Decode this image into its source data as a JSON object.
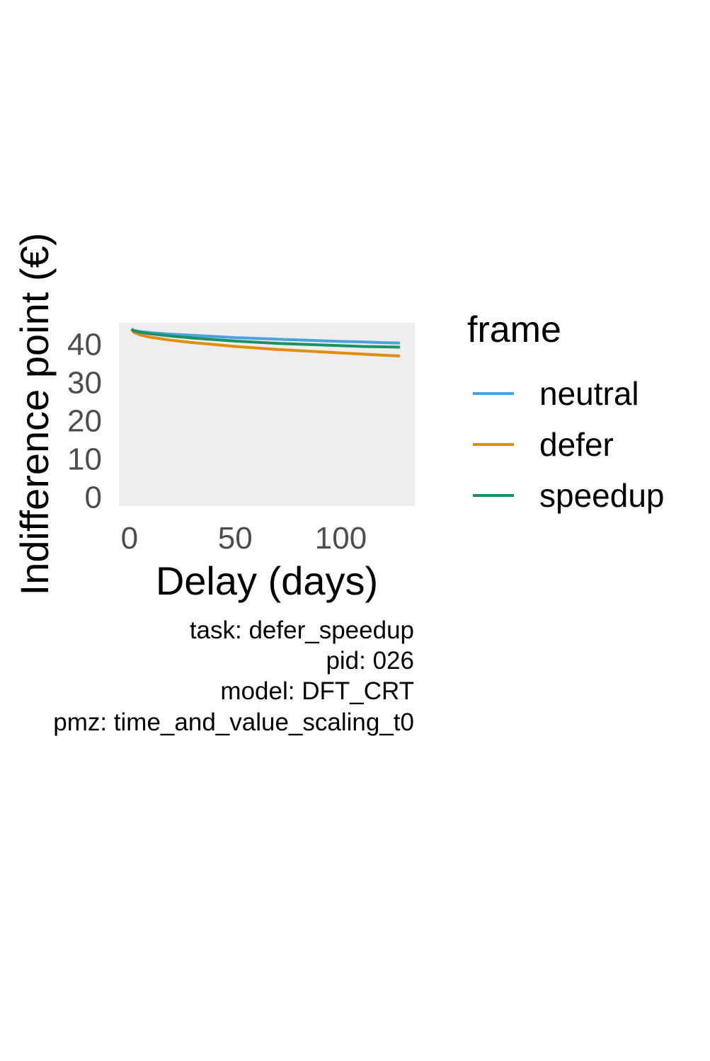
{
  "chart_data": {
    "type": "line",
    "xlabel": "Delay (days)",
    "ylabel": "Indifference point (€)",
    "xlim": [
      -5,
      135
    ],
    "ylim": [
      -2.5,
      45.5
    ],
    "x_ticks": [
      0,
      50,
      100
    ],
    "y_ticks": [
      0,
      10,
      20,
      30,
      40
    ],
    "grid": false,
    "panel_background": "#EEEEEE",
    "legend": {
      "title": "frame",
      "position": "right"
    },
    "series": [
      {
        "name": "neutral",
        "color": "#4BA3DD",
        "x": [
          1,
          2,
          5,
          10,
          20,
          30,
          40,
          50,
          60,
          70,
          80,
          90,
          100,
          110,
          120,
          128
        ],
        "y": [
          43.8,
          43.5,
          43.2,
          42.9,
          42.5,
          42.2,
          41.9,
          41.6,
          41.4,
          41.2,
          41.0,
          40.8,
          40.6,
          40.5,
          40.3,
          40.2
        ]
      },
      {
        "name": "defer",
        "color": "#E08E0B",
        "x": [
          1,
          2,
          5,
          10,
          20,
          30,
          40,
          50,
          60,
          70,
          80,
          90,
          100,
          110,
          120,
          128
        ],
        "y": [
          43.8,
          43.0,
          42.3,
          41.7,
          40.9,
          40.3,
          39.8,
          39.3,
          38.9,
          38.5,
          38.2,
          37.9,
          37.6,
          37.3,
          37.0,
          36.8
        ]
      },
      {
        "name": "speedup",
        "color": "#1A9263",
        "x": [
          1,
          2,
          5,
          10,
          20,
          30,
          40,
          50,
          60,
          70,
          80,
          90,
          100,
          110,
          120,
          128
        ],
        "y": [
          43.9,
          43.4,
          43.0,
          42.6,
          42.0,
          41.5,
          41.1,
          40.7,
          40.4,
          40.1,
          39.9,
          39.7,
          39.5,
          39.3,
          39.2,
          39.1
        ]
      }
    ]
  },
  "caption": [
    "task: defer_speedup",
    "pid: 026",
    "model: DFT_CRT",
    "pmz: time_and_value_scaling_t0"
  ]
}
